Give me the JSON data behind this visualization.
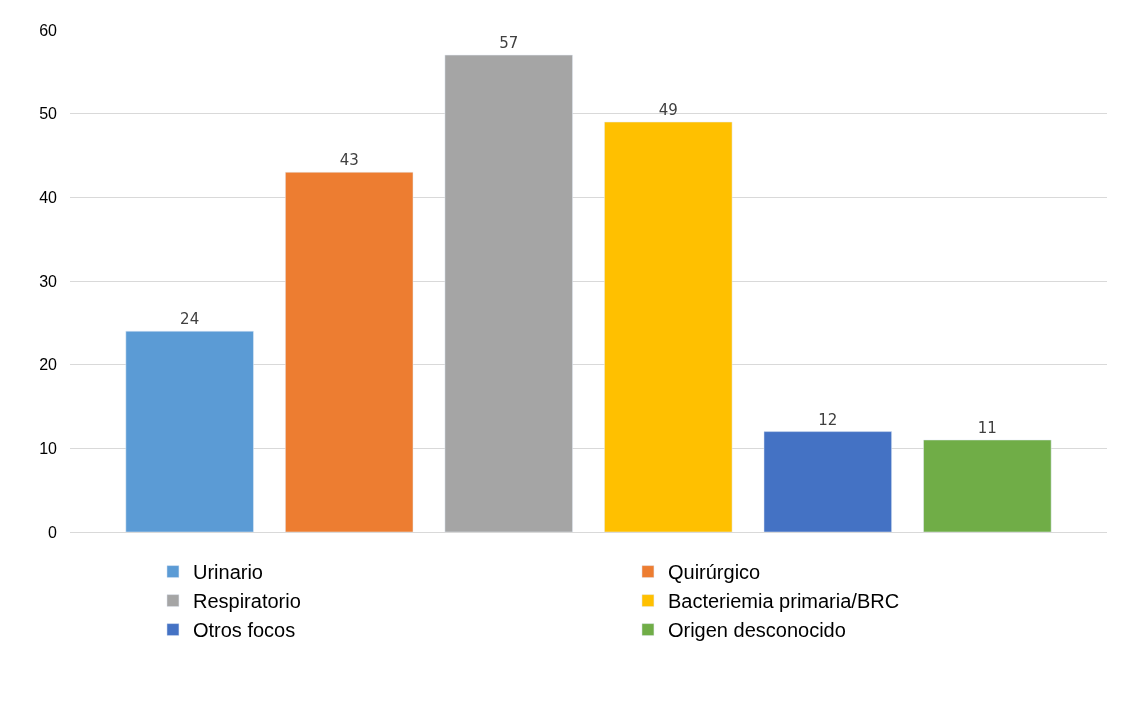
{
  "chart_data": {
    "type": "bar",
    "categories": [
      null,
      null,
      null,
      null,
      null,
      null
    ],
    "series": [
      {
        "name": "Urinario",
        "color": "#5b9bd5",
        "values": [
          24,
          null,
          null,
          null,
          null,
          null
        ]
      },
      {
        "name": "Quirúrgico",
        "color": "#ed7d31",
        "values": [
          null,
          43,
          null,
          null,
          null,
          null
        ]
      },
      {
        "name": "Respiratorio",
        "color": "#a5a5a5",
        "values": [
          null,
          null,
          57,
          null,
          null,
          null
        ]
      },
      {
        "name": "Bacteriemia primaria/BRC",
        "color": "#ffc000",
        "values": [
          null,
          null,
          null,
          49,
          null,
          null
        ]
      },
      {
        "name": "Otros focos",
        "color": "#4472c4",
        "values": [
          null,
          null,
          null,
          null,
          12,
          null
        ]
      },
      {
        "name": "Origen desconocido",
        "color": "#70ad47",
        "values": [
          null,
          null,
          null,
          null,
          null,
          11
        ]
      }
    ],
    "ylim": [
      0,
      60
    ],
    "yticks": [
      0,
      10,
      20,
      30,
      40,
      50,
      60
    ],
    "grid": "y",
    "legend": "bottom",
    "data_labels": true
  }
}
